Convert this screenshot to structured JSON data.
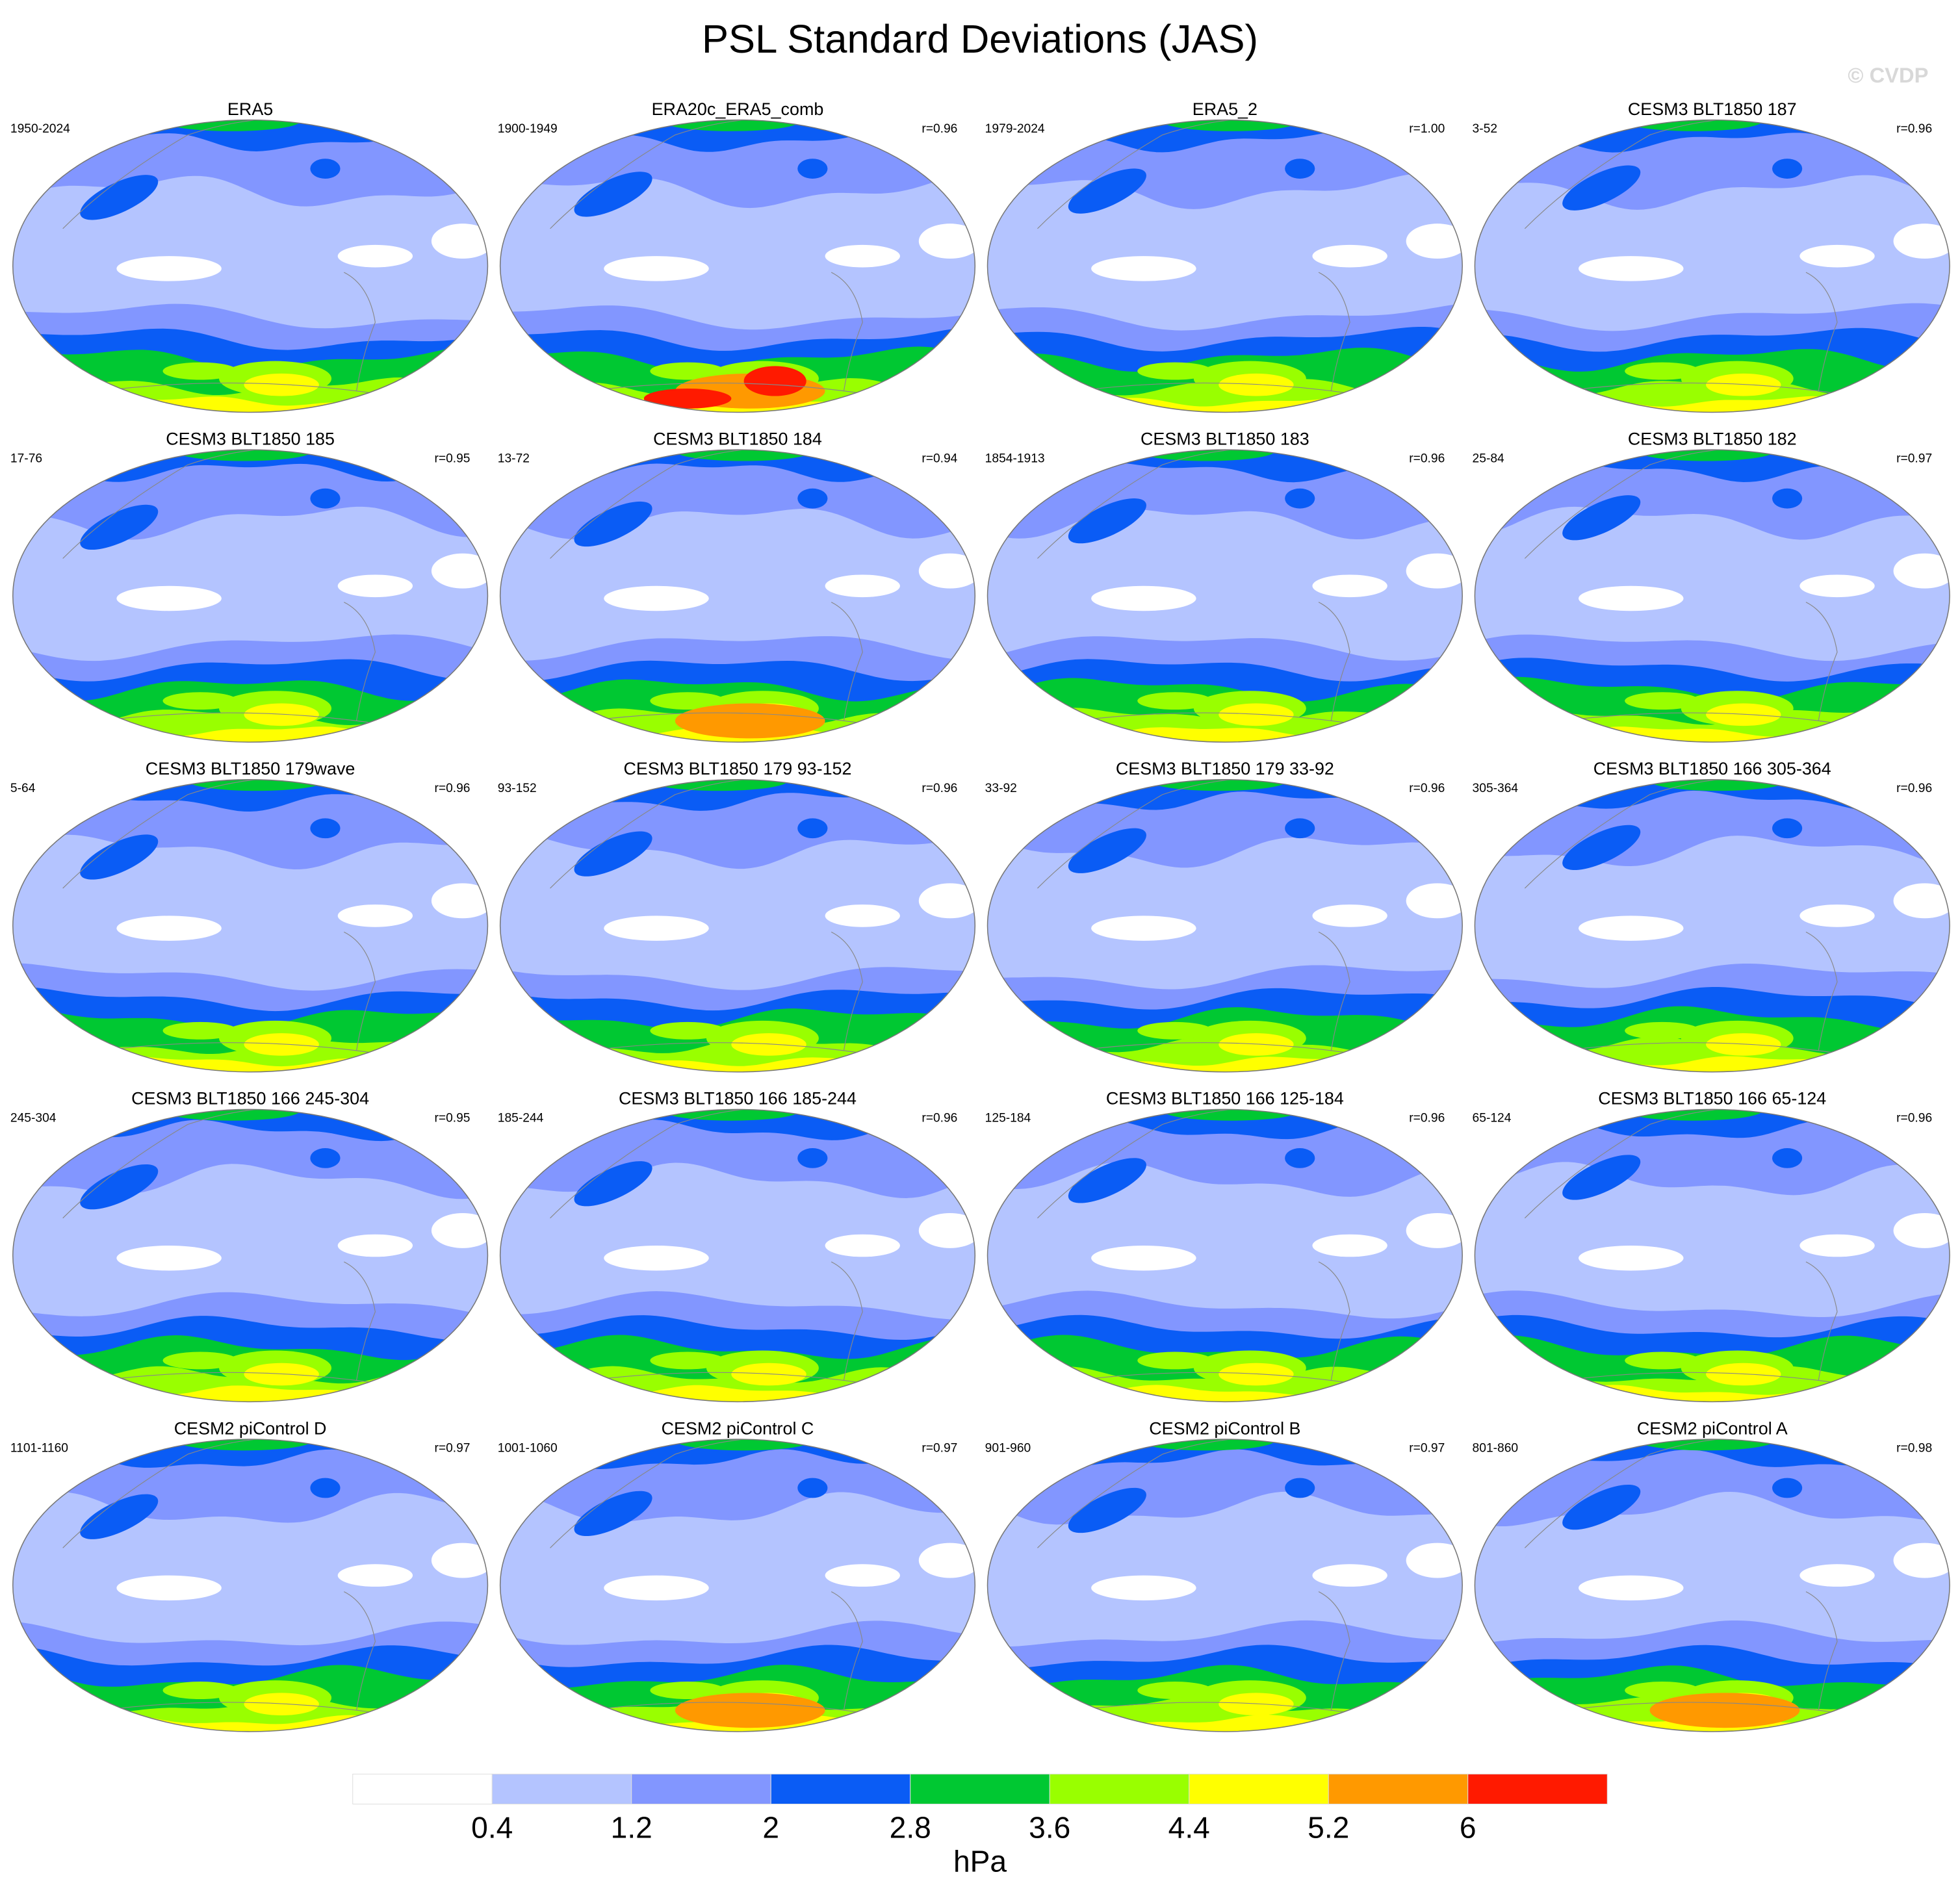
{
  "title": "PSL Standard Deviations (JAS)",
  "watermark": "© CVDP",
  "panels": [
    {
      "title": "ERA5",
      "years": "1950-2024"
    },
    {
      "title": "ERA20c_ERA5_comb",
      "years": "1900-1949",
      "r": "r=0.96"
    },
    {
      "title": "ERA5_2",
      "years": "1979-2024",
      "r": "r=1.00"
    },
    {
      "title": "CESM3 BLT1850 187",
      "years": "3-52",
      "r": "r=0.96"
    },
    {
      "title": "CESM3 BLT1850 185",
      "years": "17-76",
      "r": "r=0.95"
    },
    {
      "title": "CESM3 BLT1850 184",
      "years": "13-72",
      "r": "r=0.94"
    },
    {
      "title": "CESM3 BLT1850 183",
      "years": "1854-1913",
      "r": "r=0.96"
    },
    {
      "title": "CESM3 BLT1850 182",
      "years": "25-84",
      "r": "r=0.97"
    },
    {
      "title": "CESM3 BLT1850 179wave",
      "years": "5-64",
      "r": "r=0.96"
    },
    {
      "title": "CESM3 BLT1850 179 93-152",
      "years": "93-152",
      "r": "r=0.96"
    },
    {
      "title": "CESM3 BLT1850 179 33-92",
      "years": "33-92",
      "r": "r=0.96"
    },
    {
      "title": "CESM3 BLT1850 166 305-364",
      "years": "305-364",
      "r": "r=0.96"
    },
    {
      "title": "CESM3 BLT1850 166 245-304",
      "years": "245-304",
      "r": "r=0.95"
    },
    {
      "title": "CESM3 BLT1850 166 185-244",
      "years": "185-244",
      "r": "r=0.96"
    },
    {
      "title": "CESM3 BLT1850 166 125-184",
      "years": "125-184",
      "r": "r=0.96"
    },
    {
      "title": "CESM3 BLT1850 166 65-124",
      "years": "65-124",
      "r": "r=0.96"
    },
    {
      "title": "CESM2 piControl D",
      "years": "1101-1160",
      "r": "r=0.97"
    },
    {
      "title": "CESM2 piControl C",
      "years": "1001-1060",
      "r": "r=0.97"
    },
    {
      "title": "CESM2 piControl B",
      "years": "901-960",
      "r": "r=0.97"
    },
    {
      "title": "CESM2 piControl A",
      "years": "801-860",
      "r": "r=0.98"
    }
  ],
  "colorbar": {
    "levels": [
      0.4,
      1.2,
      2,
      2.8,
      3.6,
      4.4,
      5.2,
      6
    ],
    "colors": [
      "#ffffff",
      "#b4c4ff",
      "#8296ff",
      "#0a5cf5",
      "#00c832",
      "#99ff00",
      "#ffff00",
      "#ff9900",
      "#ff1a00"
    ],
    "label": "hPa"
  }
}
